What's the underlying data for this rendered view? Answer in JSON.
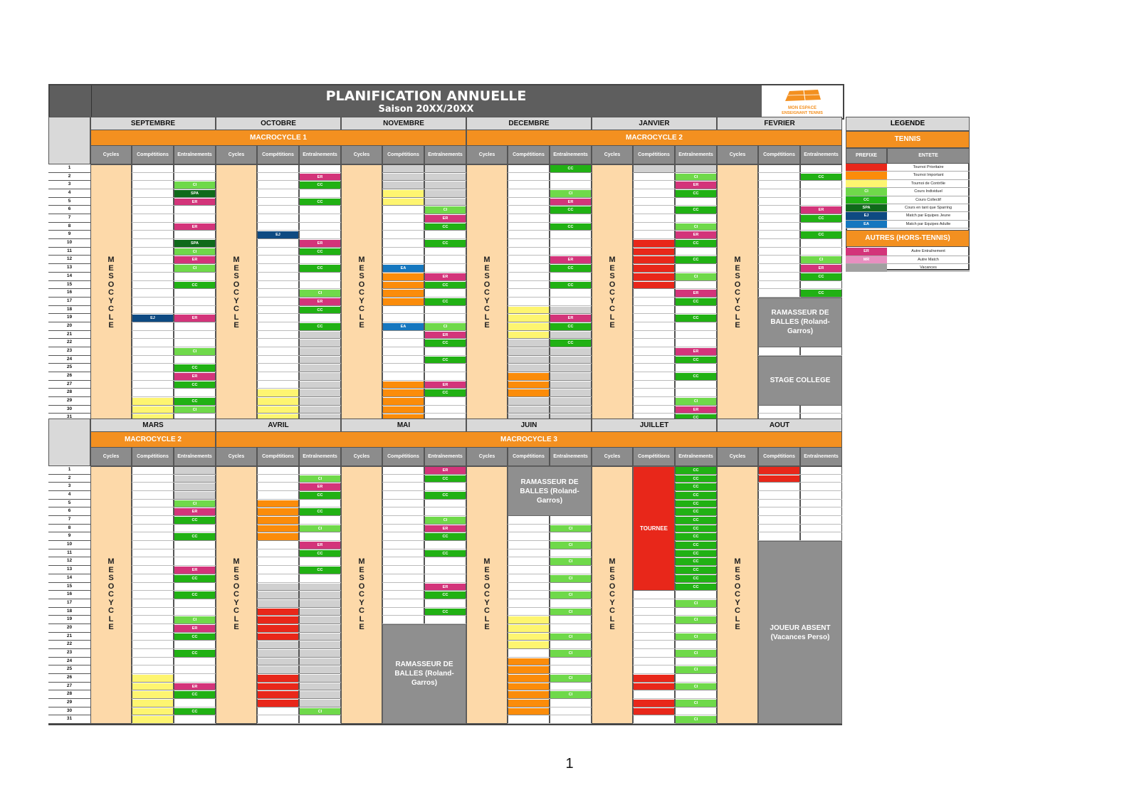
{
  "title": "PLANIFICATION ANNUELLE",
  "subtitle": "Saison 20XX/20XX",
  "logo": {
    "line1": "MON ESPACE",
    "line2": "ENSEIGNANT TENNIS"
  },
  "page_number": "1",
  "column_headers": [
    "Cycles",
    "Compétitions",
    "Entraînements"
  ],
  "cycle_label": "MESOCYCLE",
  "days": [
    "1",
    "2",
    "3",
    "4",
    "5",
    "6",
    "7",
    "8",
    "9",
    "10",
    "11",
    "12",
    "13",
    "14",
    "15",
    "16",
    "17",
    "18",
    "19",
    "20",
    "21",
    "22",
    "23",
    "24",
    "25",
    "26",
    "27",
    "28",
    "29",
    "30",
    "31"
  ],
  "colors": {
    "red": "#e8271a",
    "orange": "#fb8c0a",
    "yellow": "#fef570",
    "ci": "#6fd94a",
    "cc": "#21b114",
    "spa": "#0f6a1a",
    "ej": "#0e4a82",
    "ea": "#1577bf",
    "er": "#d3347a",
    "gray": "#d0d0d0",
    "accent": "#f39020",
    "cycle": "#fdd9a9"
  },
  "top": {
    "months": [
      "SEPTEMBRE",
      "OCTOBRE",
      "NOVEMBRE",
      "DECEMBRE",
      "JANVIER",
      "FEVRIER"
    ],
    "macrocycles": [
      {
        "label": "MACROCYCLE 1",
        "span": 3
      },
      {
        "label": "MACROCYCLE 2",
        "span": 3
      }
    ],
    "columns": [
      {
        "comp": [
          [
            "19",
            "19",
            "ej"
          ],
          [
            "29",
            "31",
            "yellow"
          ]
        ],
        "entr": [
          [
            "3",
            "3",
            "ci"
          ],
          [
            "4",
            "4",
            "spa"
          ],
          [
            "5",
            "5",
            "er"
          ],
          [
            "8",
            "8",
            "er"
          ],
          [
            "10",
            "10",
            "spa"
          ],
          [
            "11",
            "11",
            "ci"
          ],
          [
            "12",
            "12",
            "er"
          ],
          [
            "13",
            "13",
            "ci"
          ],
          [
            "15",
            "15",
            "cc"
          ],
          [
            "19",
            "19",
            "er"
          ],
          [
            "23",
            "23",
            "ci"
          ],
          [
            "25",
            "25",
            "cc"
          ],
          [
            "26",
            "26",
            "er"
          ],
          [
            "27",
            "27",
            "cc"
          ],
          [
            "29",
            "29",
            "cc"
          ],
          [
            "30",
            "30",
            "ci"
          ]
        ]
      },
      {
        "comp": [
          [
            "9",
            "9",
            "ej"
          ],
          [
            "28",
            "31",
            "yellow"
          ]
        ],
        "entr": [
          [
            "2",
            "2",
            "er"
          ],
          [
            "3",
            "3",
            "cc"
          ],
          [
            "5",
            "5",
            "cc"
          ],
          [
            "10",
            "10",
            "er"
          ],
          [
            "11",
            "11",
            "cc"
          ],
          [
            "13",
            "13",
            "cc"
          ],
          [
            "16",
            "16",
            "ci"
          ],
          [
            "17",
            "17",
            "er"
          ],
          [
            "18",
            "18",
            "cc"
          ],
          [
            "20",
            "20",
            "cc"
          ],
          [
            "21",
            "31",
            "gray"
          ]
        ]
      },
      {
        "comp": [
          [
            "1",
            "3",
            "gray"
          ],
          [
            "4",
            "5",
            "yellow"
          ],
          [
            "13",
            "13",
            "ea"
          ],
          [
            "14",
            "14",
            "ea2"
          ],
          [
            "15",
            "17",
            "orange"
          ],
          [
            "20",
            "20",
            "ea"
          ],
          [
            "27",
            "31",
            "orange"
          ]
        ],
        "entr": [
          [
            "1",
            "5",
            "gray"
          ],
          [
            "6",
            "6",
            "ci"
          ],
          [
            "7",
            "7",
            "er"
          ],
          [
            "8",
            "8",
            "cc"
          ],
          [
            "10",
            "10",
            "cc"
          ],
          [
            "14",
            "14",
            "er"
          ],
          [
            "15",
            "15",
            "cc"
          ],
          [
            "17",
            "17",
            "cc"
          ],
          [
            "20",
            "20",
            "ci"
          ],
          [
            "21",
            "21",
            "er"
          ],
          [
            "22",
            "22",
            "cc"
          ],
          [
            "24",
            "24",
            "cc"
          ],
          [
            "27",
            "27",
            "er"
          ],
          [
            "28",
            "28",
            "cc"
          ]
        ]
      },
      {
        "comp": [
          [
            "18",
            "21",
            "yellow"
          ],
          [
            "22",
            "25",
            "gray"
          ],
          [
            "26",
            "28",
            "orange"
          ],
          [
            "29",
            "31",
            "gray"
          ]
        ],
        "entr": [
          [
            "1",
            "1",
            "cc"
          ],
          [
            "4",
            "4",
            "ci"
          ],
          [
            "5",
            "5",
            "er"
          ],
          [
            "6",
            "6",
            "cc"
          ],
          [
            "8",
            "8",
            "cc"
          ],
          [
            "12",
            "12",
            "er"
          ],
          [
            "13",
            "13",
            "cc"
          ],
          [
            "15",
            "15",
            "cc"
          ],
          [
            "18",
            "18",
            "gray"
          ],
          [
            "19",
            "19",
            "er"
          ],
          [
            "20",
            "20",
            "cc"
          ],
          [
            "21",
            "21",
            "gray"
          ],
          [
            "22",
            "22",
            "cc"
          ],
          [
            "23",
            "31",
            "gray"
          ]
        ]
      },
      {
        "comp": [
          [
            "1",
            "1",
            "gray"
          ],
          [
            "10",
            "15",
            "red"
          ]
        ],
        "entr": [
          [
            "1",
            "1",
            "gray"
          ],
          [
            "2",
            "2",
            "ci"
          ],
          [
            "3",
            "3",
            "er"
          ],
          [
            "4",
            "4",
            "cc"
          ],
          [
            "6",
            "6",
            "cc"
          ],
          [
            "8",
            "8",
            "ci"
          ],
          [
            "9",
            "9",
            "er"
          ],
          [
            "10",
            "10",
            "cc"
          ],
          [
            "12",
            "12",
            "cc"
          ],
          [
            "14",
            "14",
            "ci"
          ],
          [
            "16",
            "16",
            "er"
          ],
          [
            "17",
            "17",
            "cc"
          ],
          [
            "19",
            "19",
            "cc"
          ],
          [
            "23",
            "23",
            "er"
          ],
          [
            "24",
            "24",
            "cc"
          ],
          [
            "26",
            "26",
            "cc"
          ],
          [
            "29",
            "29",
            "ci"
          ],
          [
            "30",
            "30",
            "er"
          ],
          [
            "31",
            "31",
            "cc"
          ]
        ]
      },
      {
        "comp": [],
        "entr": [
          [
            "2",
            "2",
            "cc"
          ],
          [
            "6",
            "6",
            "er"
          ],
          [
            "7",
            "7",
            "cc"
          ],
          [
            "9",
            "9",
            "cc"
          ],
          [
            "12",
            "12",
            "ci"
          ],
          [
            "13",
            "13",
            "er"
          ],
          [
            "14",
            "14",
            "cc"
          ],
          [
            "16",
            "16",
            "cc"
          ]
        ]
      }
    ],
    "blocks": [
      {
        "col": 5,
        "from": 17,
        "to": 22,
        "text": "RAMASSEUR DE BALLES (Roland-Garros)",
        "wide": true
      },
      {
        "col": 5,
        "from": 24,
        "to": 29,
        "text": "STAGE COLLEGE",
        "wide": true
      }
    ]
  },
  "bottom": {
    "months": [
      "MARS",
      "AVRIL",
      "MAI",
      "JUIN",
      "JUILLET",
      "AOUT"
    ],
    "macrocycles": [
      {
        "label": "MACROCYCLE 2",
        "span": 1
      },
      {
        "label": "MACROCYCLE 3",
        "span": 5
      }
    ],
    "columns": [
      {
        "comp": [
          [
            "26",
            "31",
            "yellow"
          ]
        ],
        "entr": [
          [
            "1",
            "4",
            "gray"
          ],
          [
            "5",
            "5",
            "ci"
          ],
          [
            "6",
            "6",
            "er"
          ],
          [
            "7",
            "7",
            "cc"
          ],
          [
            "9",
            "9",
            "cc"
          ],
          [
            "13",
            "13",
            "er"
          ],
          [
            "14",
            "14",
            "cc"
          ],
          [
            "16",
            "16",
            "cc"
          ],
          [
            "19",
            "19",
            "ci"
          ],
          [
            "20",
            "20",
            "er"
          ],
          [
            "21",
            "21",
            "cc"
          ],
          [
            "23",
            "23",
            "cc"
          ],
          [
            "27",
            "27",
            "er"
          ],
          [
            "28",
            "28",
            "cc"
          ],
          [
            "30",
            "30",
            "cc"
          ]
        ]
      },
      {
        "comp": [
          [
            "5",
            "9",
            "orange"
          ],
          [
            "15",
            "17",
            "gray"
          ],
          [
            "18",
            "21",
            "red"
          ],
          [
            "22",
            "25",
            "gray"
          ],
          [
            "26",
            "29",
            "red"
          ]
        ],
        "entr": [
          [
            "2",
            "2",
            "ci"
          ],
          [
            "3",
            "3",
            "er"
          ],
          [
            "4",
            "4",
            "cc"
          ],
          [
            "6",
            "6",
            "cc"
          ],
          [
            "8",
            "8",
            "ci"
          ],
          [
            "10",
            "10",
            "er"
          ],
          [
            "11",
            "11",
            "cc"
          ],
          [
            "13",
            "13",
            "cc"
          ],
          [
            "15",
            "29",
            "gray"
          ],
          [
            "30",
            "30",
            "ci"
          ]
        ]
      },
      {
        "comp": [],
        "entr": [
          [
            "1",
            "1",
            "er"
          ],
          [
            "2",
            "2",
            "cc"
          ],
          [
            "4",
            "4",
            "cc"
          ],
          [
            "7",
            "7",
            "ci"
          ],
          [
            "8",
            "8",
            "er"
          ],
          [
            "9",
            "9",
            "cc"
          ],
          [
            "11",
            "11",
            "cc"
          ],
          [
            "15",
            "15",
            "er"
          ],
          [
            "16",
            "16",
            "cc"
          ],
          [
            "18",
            "18",
            "cc"
          ]
        ]
      },
      {
        "comp": [
          [
            "19",
            "22",
            "yellow"
          ],
          [
            "24",
            "30",
            "orange"
          ]
        ],
        "entr": [
          [
            "8",
            "8",
            "ci"
          ],
          [
            "10",
            "10",
            "ci"
          ],
          [
            "12",
            "12",
            "ci"
          ],
          [
            "14",
            "14",
            "ci"
          ],
          [
            "16",
            "16",
            "ci"
          ],
          [
            "18",
            "18",
            "ci"
          ],
          [
            "21",
            "21",
            "ci"
          ],
          [
            "23",
            "23",
            "ci"
          ],
          [
            "26",
            "26",
            "ci"
          ],
          [
            "28",
            "28",
            "ci"
          ]
        ]
      },
      {
        "comp": [
          [
            "26",
            "27",
            "red"
          ],
          [
            "29",
            "30",
            "red"
          ]
        ],
        "entr": [
          [
            "1",
            "15",
            "cc"
          ],
          [
            "17",
            "17",
            "ci"
          ],
          [
            "19",
            "19",
            "ci"
          ],
          [
            "21",
            "21",
            "ci"
          ],
          [
            "23",
            "23",
            "ci"
          ],
          [
            "25",
            "25",
            "ci"
          ],
          [
            "27",
            "27",
            "ci"
          ],
          [
            "29",
            "29",
            "ci"
          ],
          [
            "31",
            "31",
            "ci"
          ]
        ]
      },
      {
        "comp": [
          [
            "1",
            "2",
            "red"
          ]
        ],
        "entr": []
      }
    ],
    "blocks": [
      {
        "col": 2,
        "from": 20,
        "to": 31,
        "text": "RAMASSEUR DE BALLES (Roland-Garros)",
        "wide": true
      },
      {
        "col": 3,
        "from": 1,
        "to": 6,
        "text": "RAMASSEUR DE BALLES (Roland-Garros)",
        "wide": true
      },
      {
        "col": 4,
        "from": 1,
        "to": 15,
        "text": "TOURNEE",
        "wide": false,
        "red": true
      },
      {
        "col": 5,
        "from": 10,
        "to": 31,
        "text": "JOUEUR ABSENT (Vacances Perso)",
        "wide": true
      }
    ]
  },
  "legend": {
    "title": "LEGENDE",
    "section1": "TENNIS",
    "col_prefix": "PREFIXE",
    "col_entry": "ENTETE",
    "rows1": [
      {
        "prefix": "",
        "color": "#e8271a",
        "label": "Tournoi Prioritaire"
      },
      {
        "prefix": "",
        "color": "#fb8c0a",
        "label": "Tournoi Important"
      },
      {
        "prefix": "",
        "color": "#fef570",
        "label": "Tournoi de Contrôle"
      },
      {
        "prefix": "CI",
        "color": "#6fd94a",
        "label": "Cours Individuel"
      },
      {
        "prefix": "CC",
        "color": "#21b114",
        "label": "Cours Collectif"
      },
      {
        "prefix": "SPA",
        "color": "#0f6a1a",
        "label": "Cours en tant que Sparring"
      },
      {
        "prefix": "EJ",
        "color": "#0e4a82",
        "label": "Match par Equipes Jeune"
      },
      {
        "prefix": "EA",
        "color": "#1577bf",
        "label": "Match par Equipes Adulte"
      }
    ],
    "section2": "AUTRES (HORS-TENNIS)",
    "rows2": [
      {
        "prefix": "ER",
        "color": "#d3347a",
        "label": "Autre Entraînement"
      },
      {
        "prefix": "MR",
        "color": "#e88fc0",
        "label": "Autre Match"
      },
      {
        "prefix": "",
        "color": "#a0a0a0",
        "label": "Vacances"
      }
    ]
  }
}
